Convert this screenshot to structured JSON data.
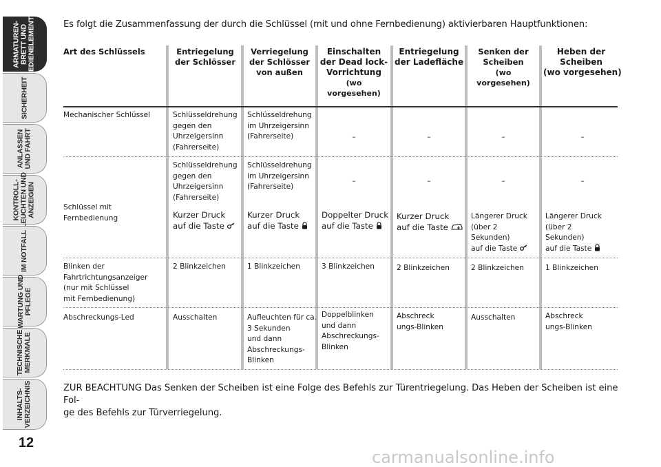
{
  "tabs": [
    {
      "label": "ARMATUREN-\nBRETT UND\nBEDIENELEMENTE",
      "active": true
    },
    {
      "label": "SICHERHEIT"
    },
    {
      "label": "ANLASSEN\nUND FAHRT"
    },
    {
      "label": "KONTROLL-\nLEUCHTEN UND\nANZEIGEN"
    },
    {
      "label": "IM NOTFALL"
    },
    {
      "label": "WARTUNG UND\nPFLEGE"
    },
    {
      "label": "TECHNISCHE\nMERKMALE"
    },
    {
      "label": "INHALTS-\nVERZEICHNIS"
    }
  ],
  "page_number": "12",
  "intro": "Es folgt die Zusammenfassung der durch die Schlüssel (mit und ohne Fernbedienung) aktivierbaren Hauptfunktionen:",
  "headers": {
    "art": "Art des Schlüssels",
    "entriegelung": "Entriegelung\nder Schlösser",
    "verriegelung": "Verriegelung\nder Schlösser\nvon außen",
    "deadlock": "Einschalten\nder Dead lock-\nVorrichtung",
    "deadlock_sub": "(wo vorgesehen)",
    "ladeflaeche": "Entriegelung\nder Ladefläche",
    "senken": "Senken der\nScheiben",
    "senken_sub": "(wo vorgesehen)",
    "heben": "Heben der\nScheiben\n(wo vorgesehen)"
  },
  "rows": {
    "mechanisch": {
      "label": "Mechanischer Schlüssel",
      "entriegelung": "Schlüsseldrehung\ngegen den\nUhrzeigersinn\n(Fahrerseite)",
      "verriegelung": "Schlüsseldrehung\nim Uhrzeigersinn\n(Fahrerseite)",
      "deadlock": "–",
      "ladeflaeche": "–",
      "senken": "–",
      "heben": "–"
    },
    "fernbedienung": {
      "label": "Schlüssel mit Fernbedienung",
      "entriegelung": "Schlüsseldrehung\ngegen den\nUhrzeigersinn\n(Fahrerseite)",
      "verriegelung": "Schlüsseldrehung\nim Uhrzeigersinn\n(Fahrerseite)",
      "deadlock": "–",
      "ladeflaeche": "–",
      "senken": "–",
      "heben": "–",
      "entriegelung_press": "Kurzer Druck\nauf die Taste",
      "verriegelung_press": "Kurzer Druck\nauf die Taste",
      "deadlock_press": "Doppelter Druck\nauf die Taste",
      "ladeflaeche_press": "Kurzer Druck\nauf die Taste",
      "senken_press": "Längerer Druck\n(über 2\nSekunden)\nauf die Taste",
      "heben_press": "Längerer Druck\n(über 2\nSekunden)\nauf die Taste"
    },
    "blinken": {
      "label": "Blinken der\nFahrtrichtungsanzeiger\n(nur mit Schlüssel\nmit Fernbedienung)",
      "entriegelung": "2 Blinkzeichen",
      "verriegelung": "1 Blinkzeichen",
      "deadlock": "3 Blinkzeichen",
      "ladeflaeche": "2 Blinkzeichen",
      "senken": "2 Blinkzeichen",
      "heben": "1 Blinkzeichen"
    },
    "abschreckung": {
      "label": "Abschreckungs-Led",
      "entriegelung": "Ausschalten",
      "verriegelung": "Aufleuchten für ca.\n3 Sekunden\nund dann\nAbschreckungs-\nBlinken",
      "deadlock": "Doppelblinken\nund dann\nAbschreckungs-\nBlinken",
      "ladeflaeche": "Abschreck\nungs-Blinken",
      "senken": "Ausschalten",
      "heben": "Abschreck\nungs-Blinken"
    }
  },
  "note_lead": "ZUR BEACHTUNG",
  "note_text": "Das Senken der Scheiben ist eine Folge des Befehls zur Türentriegelung. Das Heben der Scheiben ist eine Fol-\nge des Befehls zur Türverriegelung.",
  "watermark": "carmanualsonline.info",
  "icons": [
    "key-unlock-icon",
    "padlock-icon",
    "trunk-icon"
  ]
}
